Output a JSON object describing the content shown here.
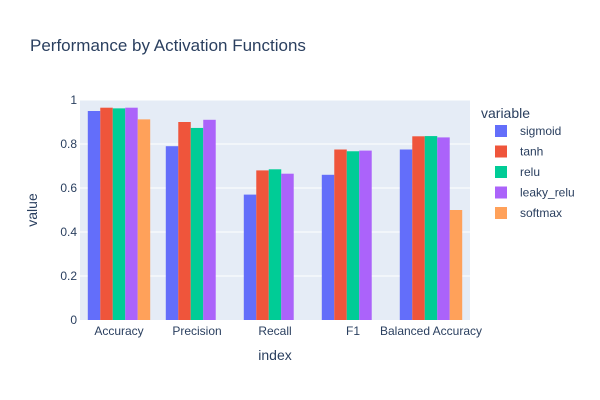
{
  "chart_data": {
    "type": "bar",
    "title": "Performance by Activation Functions",
    "xlabel": "index",
    "ylabel": "value",
    "ylim": [
      0,
      1.0
    ],
    "yticks": [
      "0",
      "0.2",
      "0.4",
      "0.6",
      "0.8",
      "1"
    ],
    "categories": [
      "Accuracy",
      "Precision",
      "Recall",
      "F1",
      "Balanced Accuracy"
    ],
    "legend": {
      "title": "variable",
      "position": "right"
    },
    "grid": true,
    "series": [
      {
        "name": "sigmoid",
        "color": "#636efa",
        "values": [
          0.95,
          0.79,
          0.57,
          0.66,
          0.775
        ]
      },
      {
        "name": "tanh",
        "color": "#ef553b",
        "values": [
          0.965,
          0.9,
          0.68,
          0.775,
          0.835
        ]
      },
      {
        "name": "relu",
        "color": "#00cc96",
        "values": [
          0.962,
          0.873,
          0.685,
          0.767,
          0.836
        ]
      },
      {
        "name": "leaky_relu",
        "color": "#ab63fa",
        "values": [
          0.965,
          0.91,
          0.665,
          0.77,
          0.83
        ]
      },
      {
        "name": "softmax",
        "color": "#ffa15a",
        "values": [
          0.912,
          0.0,
          0.0,
          0.0,
          0.5
        ]
      }
    ]
  }
}
